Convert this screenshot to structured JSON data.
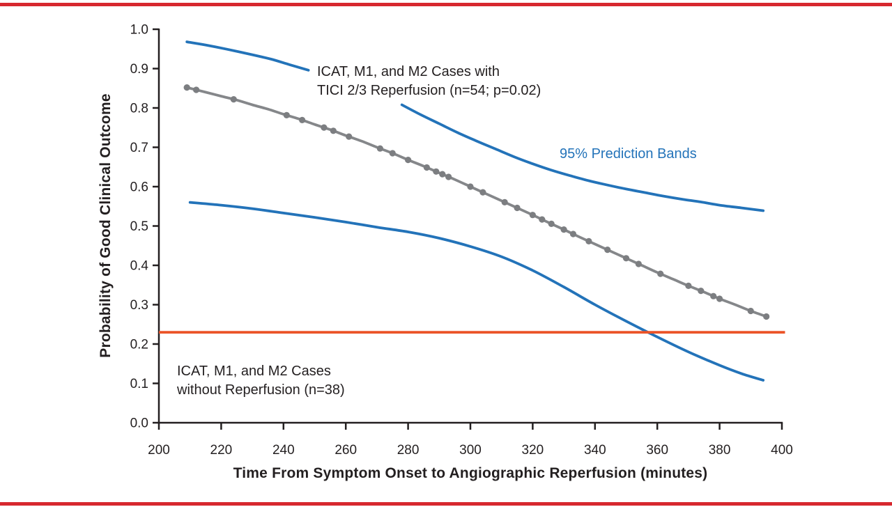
{
  "page": {
    "background": "#ffffff",
    "top_rule_color": "#d7282f",
    "bottom_rule_color": "#d7282f"
  },
  "chart_data": {
    "type": "line",
    "title": "",
    "xlabel": "Time From Symptom Onset to Angiographic Reperfusion (minutes)",
    "ylabel": "Probability of Good Clinical Outcome",
    "xlim": [
      200,
      400
    ],
    "ylim": [
      0.0,
      1.0
    ],
    "grid": false,
    "legend_position": "none",
    "axis_color": "#231f20",
    "x_ticks": [
      200,
      220,
      240,
      260,
      280,
      300,
      320,
      340,
      360,
      380,
      400
    ],
    "x_tick_labels": [
      "200",
      "220",
      "240",
      "260",
      "280",
      "300",
      "320",
      "340",
      "360",
      "380",
      "400"
    ],
    "y_ticks": [
      0.0,
      0.1,
      0.2,
      0.3,
      0.4,
      0.5,
      0.6,
      0.7,
      0.8,
      0.9,
      1.0
    ],
    "y_tick_labels": [
      "0.0",
      "0.1",
      "0.2",
      "0.3",
      "0.4",
      "0.5",
      "0.6",
      "0.7",
      "0.8",
      "0.9",
      "1.0"
    ],
    "series": [
      {
        "name": "Predicted probability, ICAT/M1/M2 cases with TICI 2/3 reperfusion",
        "kind": "curve",
        "color": "#85878a",
        "stroke_width": 3.8,
        "segments": [
          {
            "x": [
              209,
              215,
              220,
              225,
              230,
              235,
              240,
              245,
              250,
              255,
              260,
              265,
              270,
              275,
              280,
              285,
              290,
              295,
              300,
              305,
              310,
              315,
              320,
              325,
              330,
              335,
              340,
              345,
              350,
              355,
              360,
              365,
              370,
              375,
              380,
              385,
              390,
              395
            ],
            "y": [
              0.852,
              0.84,
              0.83,
              0.82,
              0.808,
              0.797,
              0.784,
              0.772,
              0.758,
              0.745,
              0.73,
              0.716,
              0.7,
              0.685,
              0.668,
              0.652,
              0.635,
              0.618,
              0.6,
              0.582,
              0.564,
              0.546,
              0.528,
              0.509,
              0.491,
              0.472,
              0.454,
              0.436,
              0.418,
              0.4,
              0.382,
              0.365,
              0.348,
              0.332,
              0.315,
              0.3,
              0.284,
              0.27
            ]
          }
        ],
        "marker": {
          "shape": "circle",
          "radius": 4.6,
          "color": "#7c7e81"
        },
        "marker_x": [
          209,
          212,
          224,
          241,
          246,
          253,
          256,
          261,
          271,
          275,
          280,
          286,
          289,
          291,
          293,
          300,
          304,
          311,
          315,
          320,
          323,
          326,
          330,
          333,
          338,
          344,
          350,
          354,
          361,
          370,
          374,
          378,
          380,
          390,
          395
        ]
      },
      {
        "name": "95% prediction band (upper)",
        "kind": "curve",
        "color": "#2373b9",
        "stroke_width": 3.8,
        "segments": [
          {
            "x": [
              209,
              215,
              222,
              229,
              236,
              242,
              248
            ],
            "y": [
              0.968,
              0.96,
              0.949,
              0.937,
              0.924,
              0.91,
              0.896
            ]
          },
          {
            "x": [
              278,
              284,
              290,
              296,
              302,
              308,
              314,
              320,
              326,
              332,
              338,
              344,
              350,
              356,
              362,
              368,
              374,
              380,
              387,
              394
            ],
            "y": [
              0.808,
              0.783,
              0.76,
              0.737,
              0.716,
              0.696,
              0.676,
              0.658,
              0.642,
              0.628,
              0.615,
              0.604,
              0.594,
              0.585,
              0.576,
              0.568,
              0.561,
              0.553,
              0.546,
              0.539
            ]
          }
        ]
      },
      {
        "name": "95% prediction band (lower)",
        "kind": "curve",
        "color": "#2373b9",
        "stroke_width": 3.8,
        "segments": [
          {
            "x": [
              210,
              220,
              230,
              240,
              250,
              260,
              270,
              280,
              290,
              300,
              310,
              320,
              330,
              340,
              350,
              360,
              370,
              380,
              387,
              394
            ],
            "y": [
              0.56,
              0.553,
              0.544,
              0.533,
              0.522,
              0.51,
              0.497,
              0.485,
              0.469,
              0.448,
              0.422,
              0.387,
              0.345,
              0.3,
              0.258,
              0.218,
              0.18,
              0.146,
              0.125,
              0.108
            ]
          }
        ]
      },
      {
        "name": "ICAT/M1/M2 cases without reperfusion reference",
        "kind": "hline",
        "color": "#eb5428",
        "stroke_width": 3.8,
        "y": 0.23,
        "x_start": 200,
        "x_end": 401
      }
    ],
    "annotations": [
      {
        "id": "reperfusion",
        "color": "#231f20",
        "line1": "ICAT, M1, and M2 Cases with",
        "line2": "TICI 2/3 Reperfusion (n=54; p=0.02)"
      },
      {
        "id": "bands",
        "color": "#2373b9",
        "text": "95% Prediction Bands"
      },
      {
        "id": "no_reperfusion",
        "color": "#231f20",
        "line1": "ICAT, M1, and M2 Cases",
        "line2": "without Reperfusion (n=38)"
      }
    ]
  }
}
